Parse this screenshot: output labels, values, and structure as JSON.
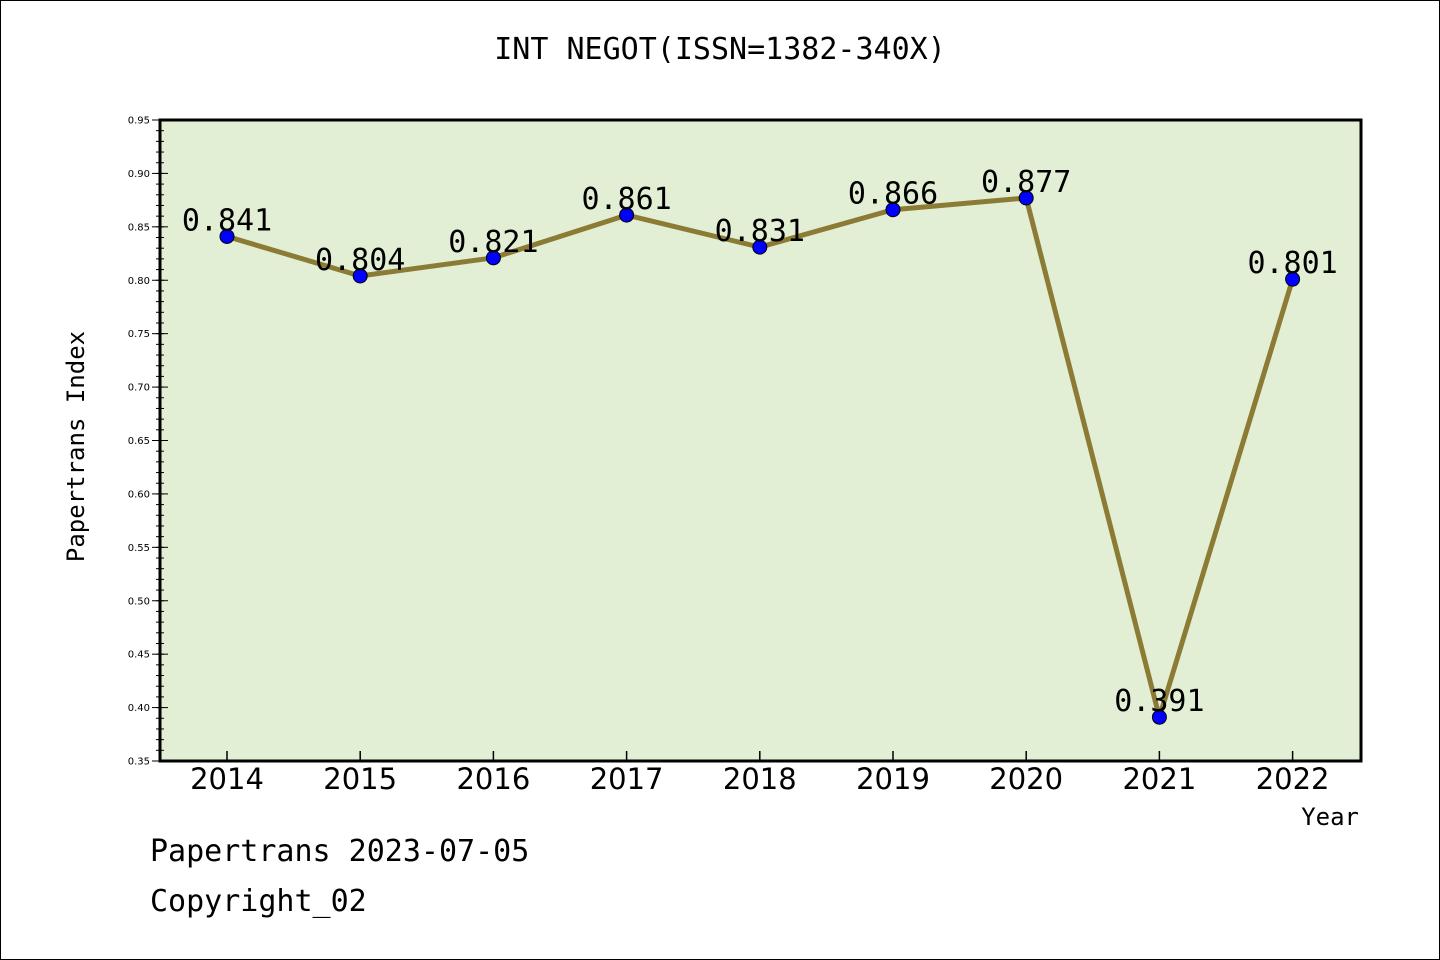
{
  "chart_data": {
    "type": "line",
    "title": "INT NEGOT(ISSN=1382-340X)",
    "xlabel": "Year",
    "ylabel": "Papertrans Index",
    "categories": [
      "2014",
      "2015",
      "2016",
      "2017",
      "2018",
      "2019",
      "2020",
      "2021",
      "2022"
    ],
    "values": [
      0.841,
      0.804,
      0.821,
      0.861,
      0.831,
      0.866,
      0.877,
      0.391,
      0.801
    ],
    "value_labels": [
      "0.841",
      "0.804",
      "0.821",
      "0.861",
      "0.831",
      "0.866",
      "0.877",
      "0.391",
      "0.801"
    ],
    "ylim": [
      0.35,
      0.95
    ],
    "yticks": [
      "0.35",
      "0.40",
      "0.45",
      "0.50",
      "0.55",
      "0.60",
      "0.65",
      "0.70",
      "0.75",
      "0.80",
      "0.85",
      "0.90",
      "0.95"
    ],
    "grid": false,
    "legend": "none",
    "colors": {
      "plot_background": "#e2efd5",
      "line": "#8b7b35",
      "marker": "#0000ff"
    }
  },
  "footer": {
    "date_line": "Papertrans 2023-07-05",
    "copyright": "Copyright_02"
  }
}
